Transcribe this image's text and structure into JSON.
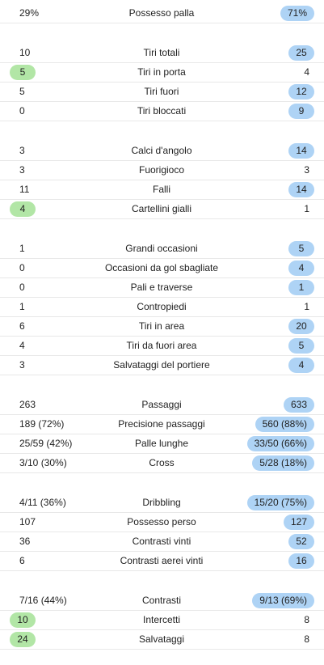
{
  "colors": {
    "winner_blue": "#aed3f5",
    "winner_green": "#b2e6a6",
    "divider": "#e8e8e8"
  },
  "groups": [
    {
      "rows": [
        {
          "label": "Possesso palla",
          "home": "29%",
          "away": "71%",
          "highlight": "away"
        }
      ]
    },
    {
      "rows": [
        {
          "label": "Tiri totali",
          "home": "10",
          "away": "25",
          "highlight": "away"
        },
        {
          "label": "Tiri in porta",
          "home": "5",
          "away": "4",
          "highlight": "home"
        },
        {
          "label": "Tiri fuori",
          "home": "5",
          "away": "12",
          "highlight": "away"
        },
        {
          "label": "Tiri bloccati",
          "home": "0",
          "away": "9",
          "highlight": "away"
        }
      ]
    },
    {
      "rows": [
        {
          "label": "Calci d'angolo",
          "home": "3",
          "away": "14",
          "highlight": "away"
        },
        {
          "label": "Fuorigioco",
          "home": "3",
          "away": "3",
          "highlight": "none"
        },
        {
          "label": "Falli",
          "home": "11",
          "away": "14",
          "highlight": "away"
        },
        {
          "label": "Cartellini gialli",
          "home": "4",
          "away": "1",
          "highlight": "home"
        }
      ]
    },
    {
      "rows": [
        {
          "label": "Grandi occasioni",
          "home": "1",
          "away": "5",
          "highlight": "away"
        },
        {
          "label": "Occasioni da gol sbagliate",
          "home": "0",
          "away": "4",
          "highlight": "away"
        },
        {
          "label": "Pali e traverse",
          "home": "0",
          "away": "1",
          "highlight": "away"
        },
        {
          "label": "Contropiedi",
          "home": "1",
          "away": "1",
          "highlight": "none"
        },
        {
          "label": "Tiri in area",
          "home": "6",
          "away": "20",
          "highlight": "away"
        },
        {
          "label": "Tiri da fuori area",
          "home": "4",
          "away": "5",
          "highlight": "away"
        },
        {
          "label": "Salvataggi del portiere",
          "home": "3",
          "away": "4",
          "highlight": "away"
        }
      ]
    },
    {
      "rows": [
        {
          "label": "Passaggi",
          "home": "263",
          "away": "633",
          "highlight": "away"
        },
        {
          "label": "Precisione passaggi",
          "home": "189 (72%)",
          "away": "560 (88%)",
          "highlight": "away"
        },
        {
          "label": "Palle lunghe",
          "home": "25/59 (42%)",
          "away": "33/50 (66%)",
          "highlight": "away"
        },
        {
          "label": "Cross",
          "home": "3/10 (30%)",
          "away": "5/28 (18%)",
          "highlight": "away"
        }
      ]
    },
    {
      "rows": [
        {
          "label": "Dribbling",
          "home": "4/11 (36%)",
          "away": "15/20 (75%)",
          "highlight": "away"
        },
        {
          "label": "Possesso perso",
          "home": "107",
          "away": "127",
          "highlight": "away"
        },
        {
          "label": "Contrasti vinti",
          "home": "36",
          "away": "52",
          "highlight": "away"
        },
        {
          "label": "Contrasti aerei vinti",
          "home": "6",
          "away": "16",
          "highlight": "away"
        }
      ]
    },
    {
      "rows": [
        {
          "label": "Contrasti",
          "home": "7/16 (44%)",
          "away": "9/13 (69%)",
          "highlight": "away"
        },
        {
          "label": "Intercetti",
          "home": "10",
          "away": "8",
          "highlight": "home"
        },
        {
          "label": "Salvataggi",
          "home": "24",
          "away": "8",
          "highlight": "home"
        }
      ]
    }
  ]
}
